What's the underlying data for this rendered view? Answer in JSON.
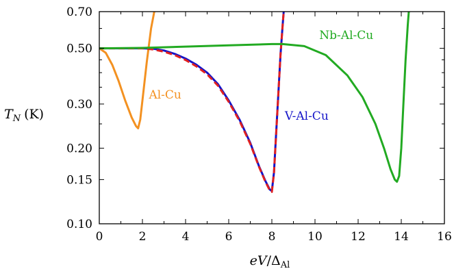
{
  "chart_data": {
    "type": "line",
    "xlabel": {
      "main": "eV",
      "sep": "/",
      "delta": "Δ",
      "sub": "Al"
    },
    "ylabel": {
      "main": "T",
      "sub": "N",
      "unit": "(K)"
    },
    "xlim": [
      0,
      16
    ],
    "ylim": [
      0.1,
      0.7
    ],
    "y_scale": "log",
    "x_ticks": [
      0,
      2,
      4,
      6,
      8,
      10,
      12,
      14,
      16
    ],
    "x_tick_labels": [
      "0",
      "2",
      "4",
      "6",
      "8",
      "10",
      "12",
      "14",
      "16"
    ],
    "y_ticks": [
      0.1,
      0.15,
      0.2,
      0.3,
      0.5,
      0.7
    ],
    "y_tick_labels": [
      "0.10",
      "0.15",
      "0.20",
      "0.30",
      "0.50",
      "0.70"
    ],
    "grid": false,
    "series": [
      {
        "name": "Al-Cu",
        "color": "#f39121",
        "dashed": false,
        "x": [
          0,
          0.3,
          0.6,
          0.9,
          1.2,
          1.5,
          1.7,
          1.8,
          1.9,
          2.0,
          2.2,
          2.4,
          2.55
        ],
        "y": [
          0.5,
          0.48,
          0.43,
          0.37,
          0.31,
          0.265,
          0.245,
          0.24,
          0.26,
          0.31,
          0.44,
          0.6,
          0.7
        ]
      },
      {
        "name": "V-Al-Cu",
        "color": "#1414c8",
        "dashed": false,
        "x": [
          0,
          1,
          2,
          2.5,
          3,
          3.5,
          4,
          4.5,
          5,
          5.5,
          6,
          6.5,
          7,
          7.4,
          7.7,
          7.9,
          8.0,
          8.1,
          8.2,
          8.3,
          8.4,
          8.5,
          8.55
        ],
        "y": [
          0.5,
          0.5,
          0.5,
          0.498,
          0.49,
          0.475,
          0.455,
          0.43,
          0.4,
          0.36,
          0.31,
          0.26,
          0.21,
          0.17,
          0.148,
          0.137,
          0.135,
          0.16,
          0.23,
          0.33,
          0.47,
          0.62,
          0.7
        ]
      },
      {
        "name": "",
        "color": "#e02020",
        "dashed": true,
        "x": [
          0,
          1,
          2,
          2.5,
          3,
          3.5,
          4,
          4.5,
          5,
          5.5,
          6,
          6.5,
          7,
          7.4,
          7.7,
          7.9,
          8.0,
          8.1,
          8.2,
          8.3,
          8.4,
          8.5,
          8.55
        ],
        "y": [
          0.5,
          0.5,
          0.5,
          0.495,
          0.485,
          0.47,
          0.449,
          0.424,
          0.394,
          0.355,
          0.306,
          0.257,
          0.208,
          0.169,
          0.147,
          0.136,
          0.134,
          0.159,
          0.229,
          0.33,
          0.47,
          0.62,
          0.7
        ]
      },
      {
        "name": "Nb-Al-Cu",
        "color": "#22aa22",
        "dashed": false,
        "x": [
          0,
          2,
          4,
          6,
          8,
          8.5,
          9.5,
          10.5,
          11.5,
          12.2,
          12.8,
          13.2,
          13.5,
          13.7,
          13.8,
          13.9,
          14.0,
          14.1,
          14.2,
          14.3,
          14.35
        ],
        "y": [
          0.5,
          0.502,
          0.508,
          0.514,
          0.52,
          0.52,
          0.51,
          0.47,
          0.39,
          0.32,
          0.25,
          0.2,
          0.165,
          0.15,
          0.147,
          0.155,
          0.2,
          0.3,
          0.45,
          0.62,
          0.7
        ]
      }
    ],
    "annotations": [
      {
        "text": "Al-Cu",
        "series": 0,
        "at": [
          2.3,
          0.315
        ]
      },
      {
        "text": "V-Al-Cu",
        "series": 1,
        "at": [
          8.6,
          0.26
        ]
      },
      {
        "text": "Nb-Al-Cu",
        "series": 3,
        "at": [
          10.2,
          0.545
        ]
      }
    ]
  }
}
